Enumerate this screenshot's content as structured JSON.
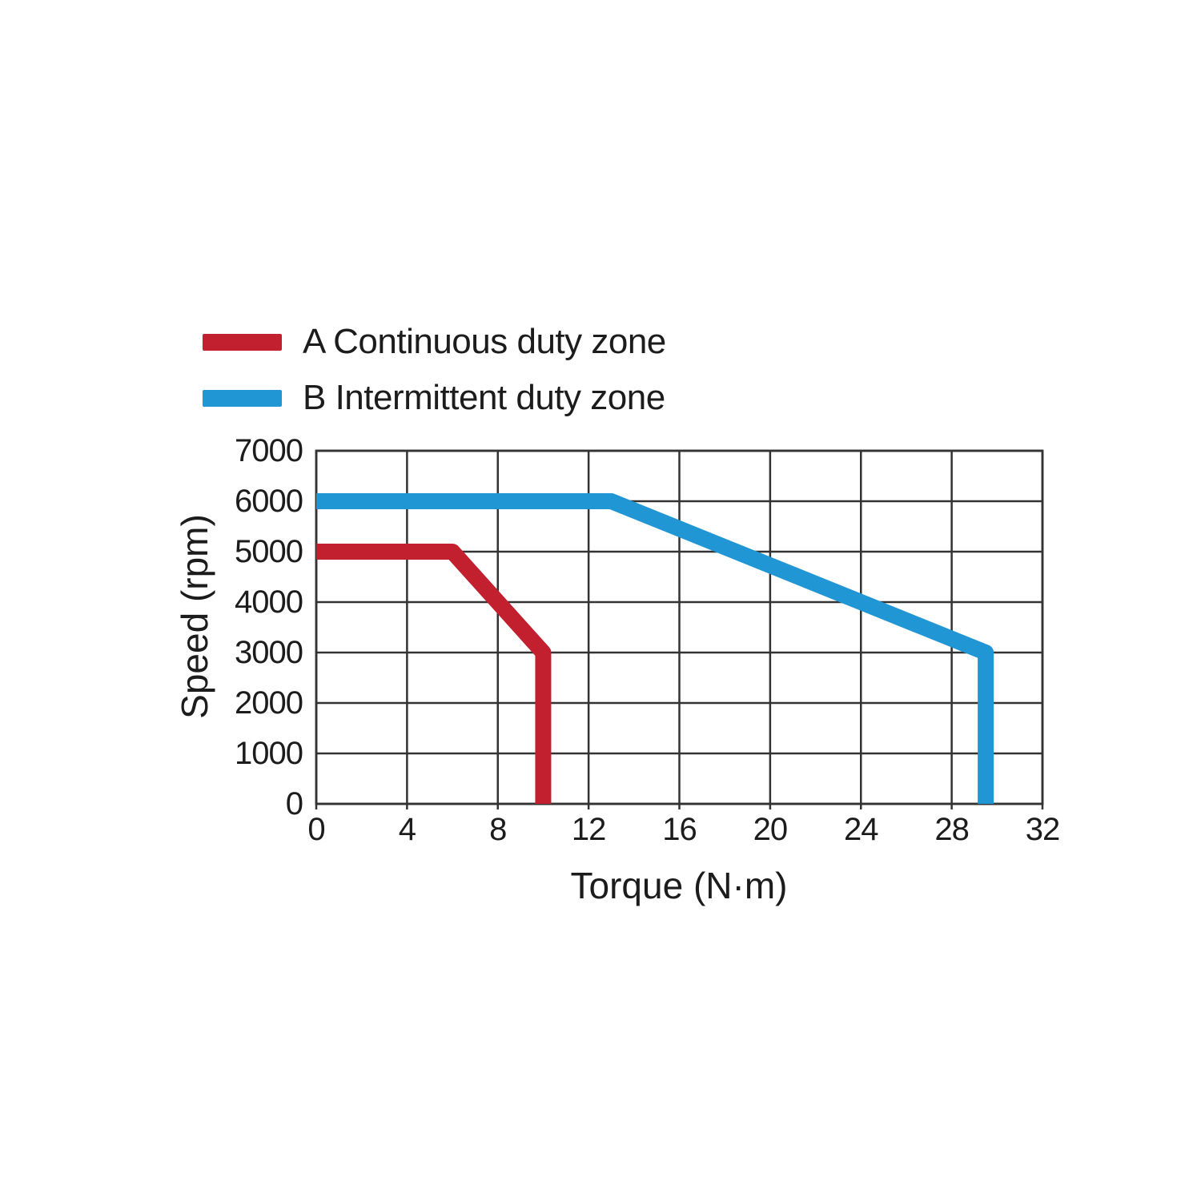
{
  "legend": [
    {
      "label": "A Continuous duty zone",
      "color": "#c2202e"
    },
    {
      "label": "B Intermittent duty zone",
      "color": "#2196d4"
    }
  ],
  "chart_data": {
    "type": "line",
    "title": "",
    "xlabel": "Torque (N·m)",
    "ylabel": "Speed (rpm)",
    "xlim": [
      0,
      32
    ],
    "ylim": [
      0,
      7000
    ],
    "x_ticks": [
      0,
      4,
      8,
      12,
      16,
      20,
      24,
      28,
      32
    ],
    "y_ticks": [
      0,
      1000,
      2000,
      3000,
      4000,
      5000,
      6000,
      7000
    ],
    "grid": true,
    "legend_position": "top-left",
    "series": [
      {
        "name": "A Continuous duty zone",
        "color": "#c2202e",
        "points": [
          [
            0,
            5000
          ],
          [
            6,
            5000
          ],
          [
            10,
            3000
          ],
          [
            10,
            0
          ]
        ]
      },
      {
        "name": "B Intermittent duty zone",
        "color": "#2196d4",
        "points": [
          [
            0,
            6000
          ],
          [
            13,
            6000
          ],
          [
            29.5,
            3000
          ],
          [
            29.5,
            0
          ]
        ]
      }
    ]
  },
  "colors": {
    "grid": "#333333",
    "text": "#1c1c1c",
    "background": "#ffffff"
  }
}
